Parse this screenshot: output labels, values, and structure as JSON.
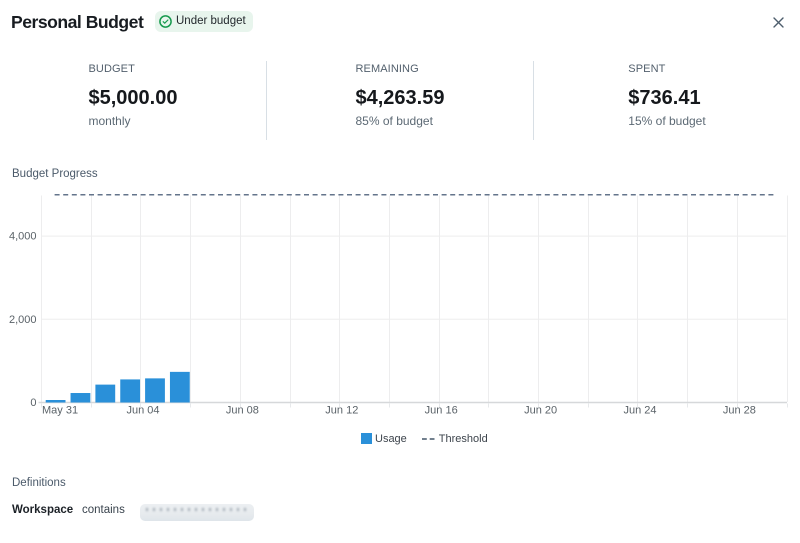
{
  "header": {
    "title": "Personal Budget",
    "badge_label": "Under budget",
    "close_icon": "x-icon"
  },
  "stats": [
    {
      "label": "BUDGET",
      "value": "$5,000.00",
      "sub": "monthly"
    },
    {
      "label": "REMAINING",
      "value": "$4,263.59",
      "sub": "85% of budget"
    },
    {
      "label": "SPENT",
      "value": "$736.41",
      "sub": "15% of budget"
    }
  ],
  "chart_data": {
    "type": "bar",
    "title": "Budget Progress",
    "x": [
      "May 31",
      "Jun 01",
      "Jun 02",
      "Jun 03",
      "Jun 04",
      "Jun 05"
    ],
    "values": [
      60,
      228,
      430,
      555,
      580,
      736.41
    ],
    "series_name": "Usage",
    "threshold": {
      "label": "Threshold",
      "value": 5000
    },
    "x_axis": {
      "start": "May 31",
      "end": "Jun 30",
      "range_days": 30,
      "grid_step_days": 2,
      "tick_step_days": 4,
      "tick_labels": [
        "May 31",
        "Jun 04",
        "Jun 08",
        "Jun 12",
        "Jun 16",
        "Jun 20",
        "Jun 24",
        "Jun 28"
      ]
    },
    "y_axis": {
      "min": 0,
      "max": 5000,
      "ticks": [
        {
          "value": 0,
          "label": "0"
        },
        {
          "value": 2000,
          "label": "2,000"
        },
        {
          "value": 4000,
          "label": "4,000"
        }
      ]
    },
    "legend": [
      "Usage",
      "Threshold"
    ],
    "colors": {
      "bar": "#2a90d9",
      "threshold": "#64748b",
      "grid": "#ededee",
      "axis": "#d6d8da"
    }
  },
  "definitions": {
    "title": "Definitions",
    "field": "Workspace",
    "operator": "contains",
    "value_redacted": true
  },
  "colors": {
    "badge_bg": "#e8f5ed",
    "badge_green": "#189a4e",
    "accent_blue": "#2a90d9"
  }
}
